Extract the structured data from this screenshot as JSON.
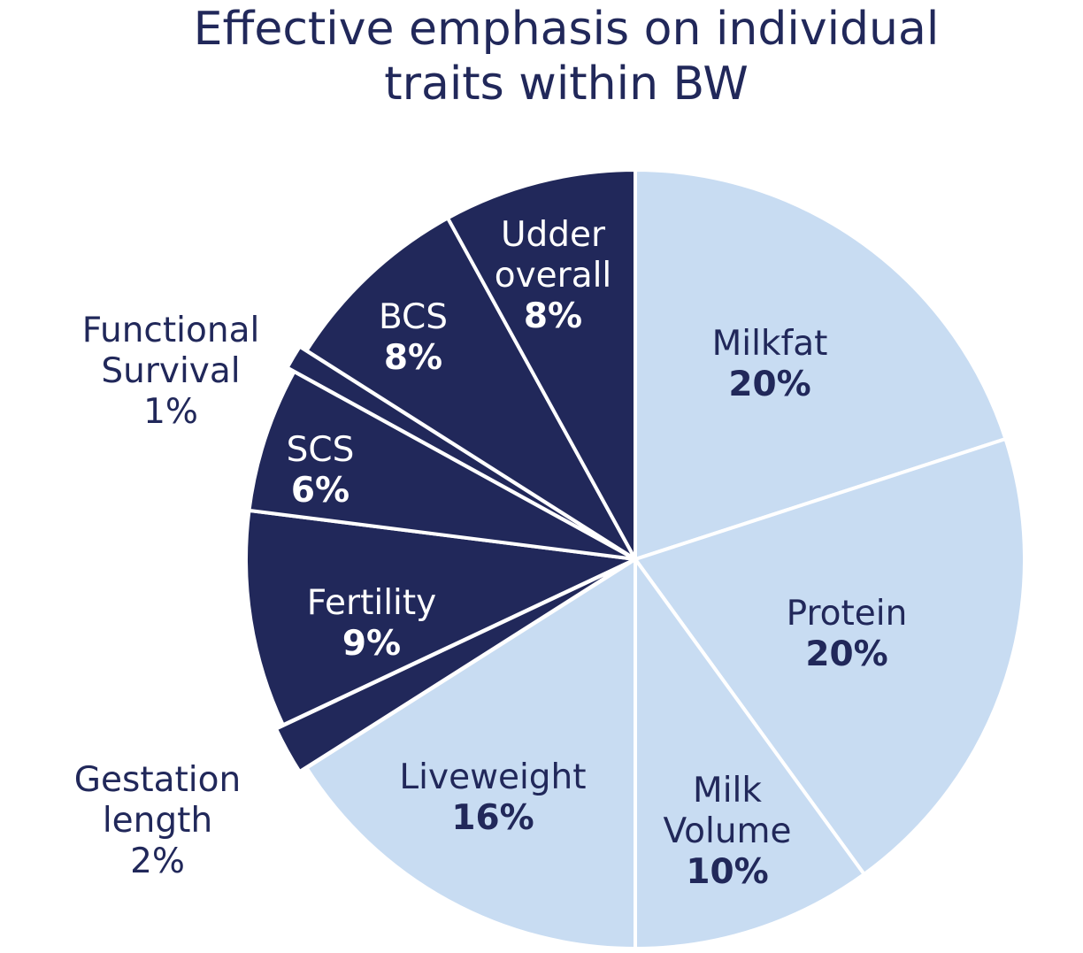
{
  "chart_data": {
    "type": "pie",
    "title": "Effective emphasis on individual traits within BW",
    "title_lines": [
      "Effective emphasis on individual",
      "traits within BW"
    ],
    "start": "12 o'clock",
    "direction": "clockwise",
    "slices": [
      {
        "name": "Milkfat",
        "lines": [
          "Milkfat"
        ],
        "value": 20,
        "label": "20%",
        "color": "#c8dcf2",
        "label_position": "inside"
      },
      {
        "name": "Protein",
        "lines": [
          "Protein"
        ],
        "value": 20,
        "label": "20%",
        "color": "#c8dcf2",
        "label_position": "inside"
      },
      {
        "name": "Milk Volume",
        "lines": [
          "Milk",
          "Volume"
        ],
        "value": 10,
        "label": "10%",
        "color": "#c8dcf2",
        "label_position": "inside"
      },
      {
        "name": "Liveweight",
        "lines": [
          "Liveweight"
        ],
        "value": 16,
        "label": "16%",
        "color": "#c8dcf2",
        "label_position": "inside"
      },
      {
        "name": "Gestation length",
        "lines": [
          "Gestation",
          "length"
        ],
        "value": 2,
        "label": "2%",
        "color": "#21285a",
        "label_position": "outside"
      },
      {
        "name": "Fertility",
        "lines": [
          "Fertility"
        ],
        "value": 9,
        "label": "9%",
        "color": "#21285a",
        "label_position": "inside"
      },
      {
        "name": "SCS",
        "lines": [
          "SCS"
        ],
        "value": 6,
        "label": "6%",
        "color": "#21285a",
        "label_position": "inside"
      },
      {
        "name": "Functional Survival",
        "lines": [
          "Functional",
          "Survival"
        ],
        "value": 1,
        "label": "1%",
        "color": "#21285a",
        "label_position": "outside"
      },
      {
        "name": "BCS",
        "lines": [
          "BCS"
        ],
        "value": 8,
        "label": "8%",
        "color": "#21285a",
        "label_position": "inside"
      },
      {
        "name": "Udder overall",
        "lines": [
          "Udder",
          "overall"
        ],
        "value": 8,
        "label": "8%",
        "color": "#21285a",
        "label_position": "inside"
      }
    ],
    "text_colors": {
      "on_light": "#21285a",
      "on_dark": "#ffffff",
      "outside": "#21285a"
    }
  }
}
